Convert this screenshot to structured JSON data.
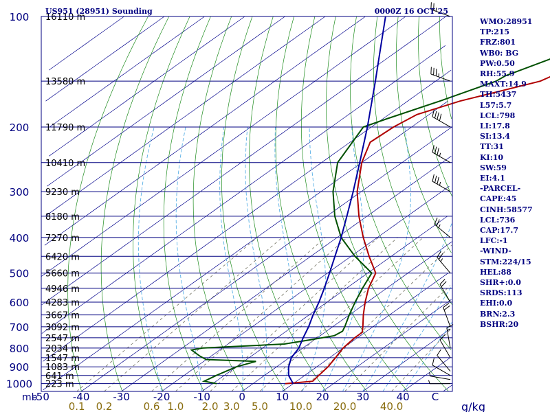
{
  "chart_data": {
    "type": "line",
    "title_left": "US951 (28951) Sounding",
    "title_right": "0000Z 16 OCT 25",
    "y_axis_unit": "mb",
    "x_axis_unit": "g/kg",
    "temperature_ticks": [
      "-50",
      "-40",
      "-30",
      "-20",
      "-10",
      "0",
      "10",
      "20",
      "30",
      "40",
      "C"
    ],
    "temperature_tick_values": [
      -50,
      -40,
      -30,
      -20,
      -10,
      0,
      10,
      20,
      30,
      40
    ],
    "pressure_ticks": [
      {
        "p": 100,
        "label": "100"
      },
      {
        "p": 200,
        "label": "200"
      },
      {
        "p": 300,
        "label": "300"
      },
      {
        "p": 400,
        "label": "400"
      },
      {
        "p": 500,
        "label": "500"
      },
      {
        "p": 600,
        "label": "600"
      },
      {
        "p": 700,
        "label": "700"
      },
      {
        "p": 800,
        "label": "800"
      },
      {
        "p": 900,
        "label": "900"
      },
      {
        "p": 1000,
        "label": "1000"
      }
    ],
    "height_labels": [
      {
        "p": 100,
        "label": "16110 m"
      },
      {
        "p": 150,
        "label": "13580 m"
      },
      {
        "p": 200,
        "label": "11790 m"
      },
      {
        "p": 250,
        "label": "10410 m"
      },
      {
        "p": 300,
        "label": "9230 m"
      },
      {
        "p": 350,
        "label": "8180 m"
      },
      {
        "p": 400,
        "label": "7270 m"
      },
      {
        "p": 450,
        "label": "6420 m"
      },
      {
        "p": 500,
        "label": "5660 m"
      },
      {
        "p": 550,
        "label": "4946 m"
      },
      {
        "p": 600,
        "label": "4283 m"
      },
      {
        "p": 650,
        "label": "3667 m"
      },
      {
        "p": 700,
        "label": "3092 m"
      },
      {
        "p": 750,
        "label": "2547 m"
      },
      {
        "p": 800,
        "label": "2034 m"
      },
      {
        "p": 850,
        "label": "1547 m"
      },
      {
        "p": 900,
        "label": "1083 m"
      },
      {
        "p": 950,
        "label": "641 m"
      },
      {
        "p": 1000,
        "label": "223 m"
      }
    ],
    "mixing_ratio_labels": [
      "0.1",
      "0.2",
      "0.6",
      "1.0",
      "2.0",
      "3.0",
      "5.0",
      "10.0",
      "20.0",
      "40.0"
    ],
    "mixing_ratio_values": [
      0.1,
      0.2,
      0.6,
      1.0,
      2.0,
      3.0,
      5.0,
      10.0,
      20.0,
      40.0
    ],
    "series": [
      {
        "key": "temperature",
        "color": "#b00000",
        "points": [
          [
            1000,
            8.0
          ],
          [
            985,
            14.0
          ],
          [
            950,
            13.5
          ],
          [
            900,
            12.8
          ],
          [
            850,
            11.5
          ],
          [
            800,
            10.0
          ],
          [
            750,
            9.3
          ],
          [
            725,
            9.3
          ],
          [
            700,
            7.5
          ],
          [
            650,
            3.5
          ],
          [
            600,
            -0.5
          ],
          [
            550,
            -4.5
          ],
          [
            500,
            -8.0
          ],
          [
            450,
            -15.5
          ],
          [
            400,
            -23.5
          ],
          [
            350,
            -32.0
          ],
          [
            300,
            -41.0
          ],
          [
            250,
            -50.0
          ],
          [
            220,
            -55.0
          ],
          [
            200,
            -54.5
          ],
          [
            185,
            -53.0
          ],
          [
            170,
            -47.0
          ],
          [
            150,
            -34.0
          ],
          [
            130,
            -29.0
          ],
          [
            110,
            -24.0
          ],
          [
            100,
            -21.0
          ]
        ]
      },
      {
        "key": "dewpoint",
        "color": "#005000",
        "points": [
          [
            1000,
            -9.0
          ],
          [
            985,
            -13.0
          ],
          [
            950,
            -12.0
          ],
          [
            900,
            -10.0
          ],
          [
            870,
            -7.0
          ],
          [
            860,
            -20.0
          ],
          [
            840,
            -23.0
          ],
          [
            810,
            -27.0
          ],
          [
            800,
            -25.0
          ],
          [
            780,
            -6.0
          ],
          [
            760,
            -1.0
          ],
          [
            740,
            3.5
          ],
          [
            720,
            4.0
          ],
          [
            700,
            3.0
          ],
          [
            650,
            0.0
          ],
          [
            600,
            -3.0
          ],
          [
            550,
            -6.0
          ],
          [
            500,
            -9.0
          ],
          [
            450,
            -19.0
          ],
          [
            400,
            -29.0
          ],
          [
            350,
            -38.0
          ],
          [
            300,
            -47.0
          ],
          [
            250,
            -56.0
          ],
          [
            200,
            -62.0
          ],
          [
            190,
            -59.0
          ],
          [
            170,
            -52.0
          ],
          [
            150,
            -45.0
          ],
          [
            145,
            -44.5
          ],
          [
            130,
            -39.0
          ],
          [
            110,
            -30.0
          ],
          [
            100,
            -26.0
          ]
        ]
      },
      {
        "key": "parcel",
        "color": "#0000a0",
        "points": [
          [
            1000,
            10.0
          ],
          [
            950,
            6.0
          ],
          [
            900,
            3.0
          ],
          [
            850,
            0.5
          ],
          [
            800,
            -1.0
          ],
          [
            750,
            -3.5
          ],
          [
            700,
            -6.0
          ],
          [
            650,
            -9.0
          ],
          [
            600,
            -12.0
          ],
          [
            550,
            -15.5
          ],
          [
            500,
            -19.5
          ],
          [
            450,
            -24.0
          ],
          [
            400,
            -29.0
          ],
          [
            350,
            -35.0
          ],
          [
            300,
            -42.0
          ],
          [
            250,
            -50.5
          ],
          [
            200,
            -61.0
          ],
          [
            150,
            -75.0
          ],
          [
            125,
            -84.0
          ],
          [
            100,
            -95.0
          ]
        ]
      }
    ],
    "wind_barbs": [
      {
        "p": 1000,
        "dir": 270,
        "spd": 5
      },
      {
        "p": 975,
        "dir": 280,
        "spd": 5
      },
      {
        "p": 950,
        "dir": 300,
        "spd": 10
      },
      {
        "p": 925,
        "dir": 320,
        "spd": 10
      },
      {
        "p": 850,
        "dir": 330,
        "spd": 10
      },
      {
        "p": 800,
        "dir": 350,
        "spd": 15
      },
      {
        "p": 700,
        "dir": 340,
        "spd": 20
      },
      {
        "p": 600,
        "dir": 330,
        "spd": 20
      },
      {
        "p": 500,
        "dir": 320,
        "spd": 25
      },
      {
        "p": 400,
        "dir": 310,
        "spd": 25
      },
      {
        "p": 300,
        "dir": 300,
        "spd": 35
      },
      {
        "p": 250,
        "dir": 300,
        "spd": 35
      },
      {
        "p": 200,
        "dir": 300,
        "spd": 40
      },
      {
        "p": 150,
        "dir": 290,
        "spd": 35
      },
      {
        "p": 100,
        "dir": 290,
        "spd": 25
      }
    ]
  },
  "indices": [
    "WMO:28951",
    "TP:215",
    "FRZ:801",
    "WB0: BG",
    "PW:0.50",
    "RH:55.9",
    "MAXT:14.9",
    "TH:5437",
    "L57:5.7",
    "LCL:798",
    "LI:17.8",
    "SI:13.4",
    "TT:31",
    "KI:10",
    "SW:59",
    "EI:4.1",
    "-PARCEL-",
    "CAPE:45",
    "CINH:58577",
    "LCL:736",
    "CAP:17.7",
    "LFC:-1",
    "-WIND-",
    "STM:224/15",
    "HEL:88",
    "SHR+:0.0",
    "SRDS:113",
    "EHI:0.0",
    "BRN:2.3",
    "BSHR:20"
  ],
  "colors": {
    "isobar": "#000080",
    "isotherm": "#00008b",
    "dry_adiabat": "#1e8c1e",
    "moist_adiabat": "#5ab0e6",
    "mixing_ratio": "#707060",
    "tick_label_temp": "#000080",
    "tick_label_mix": "#8a6e10"
  }
}
